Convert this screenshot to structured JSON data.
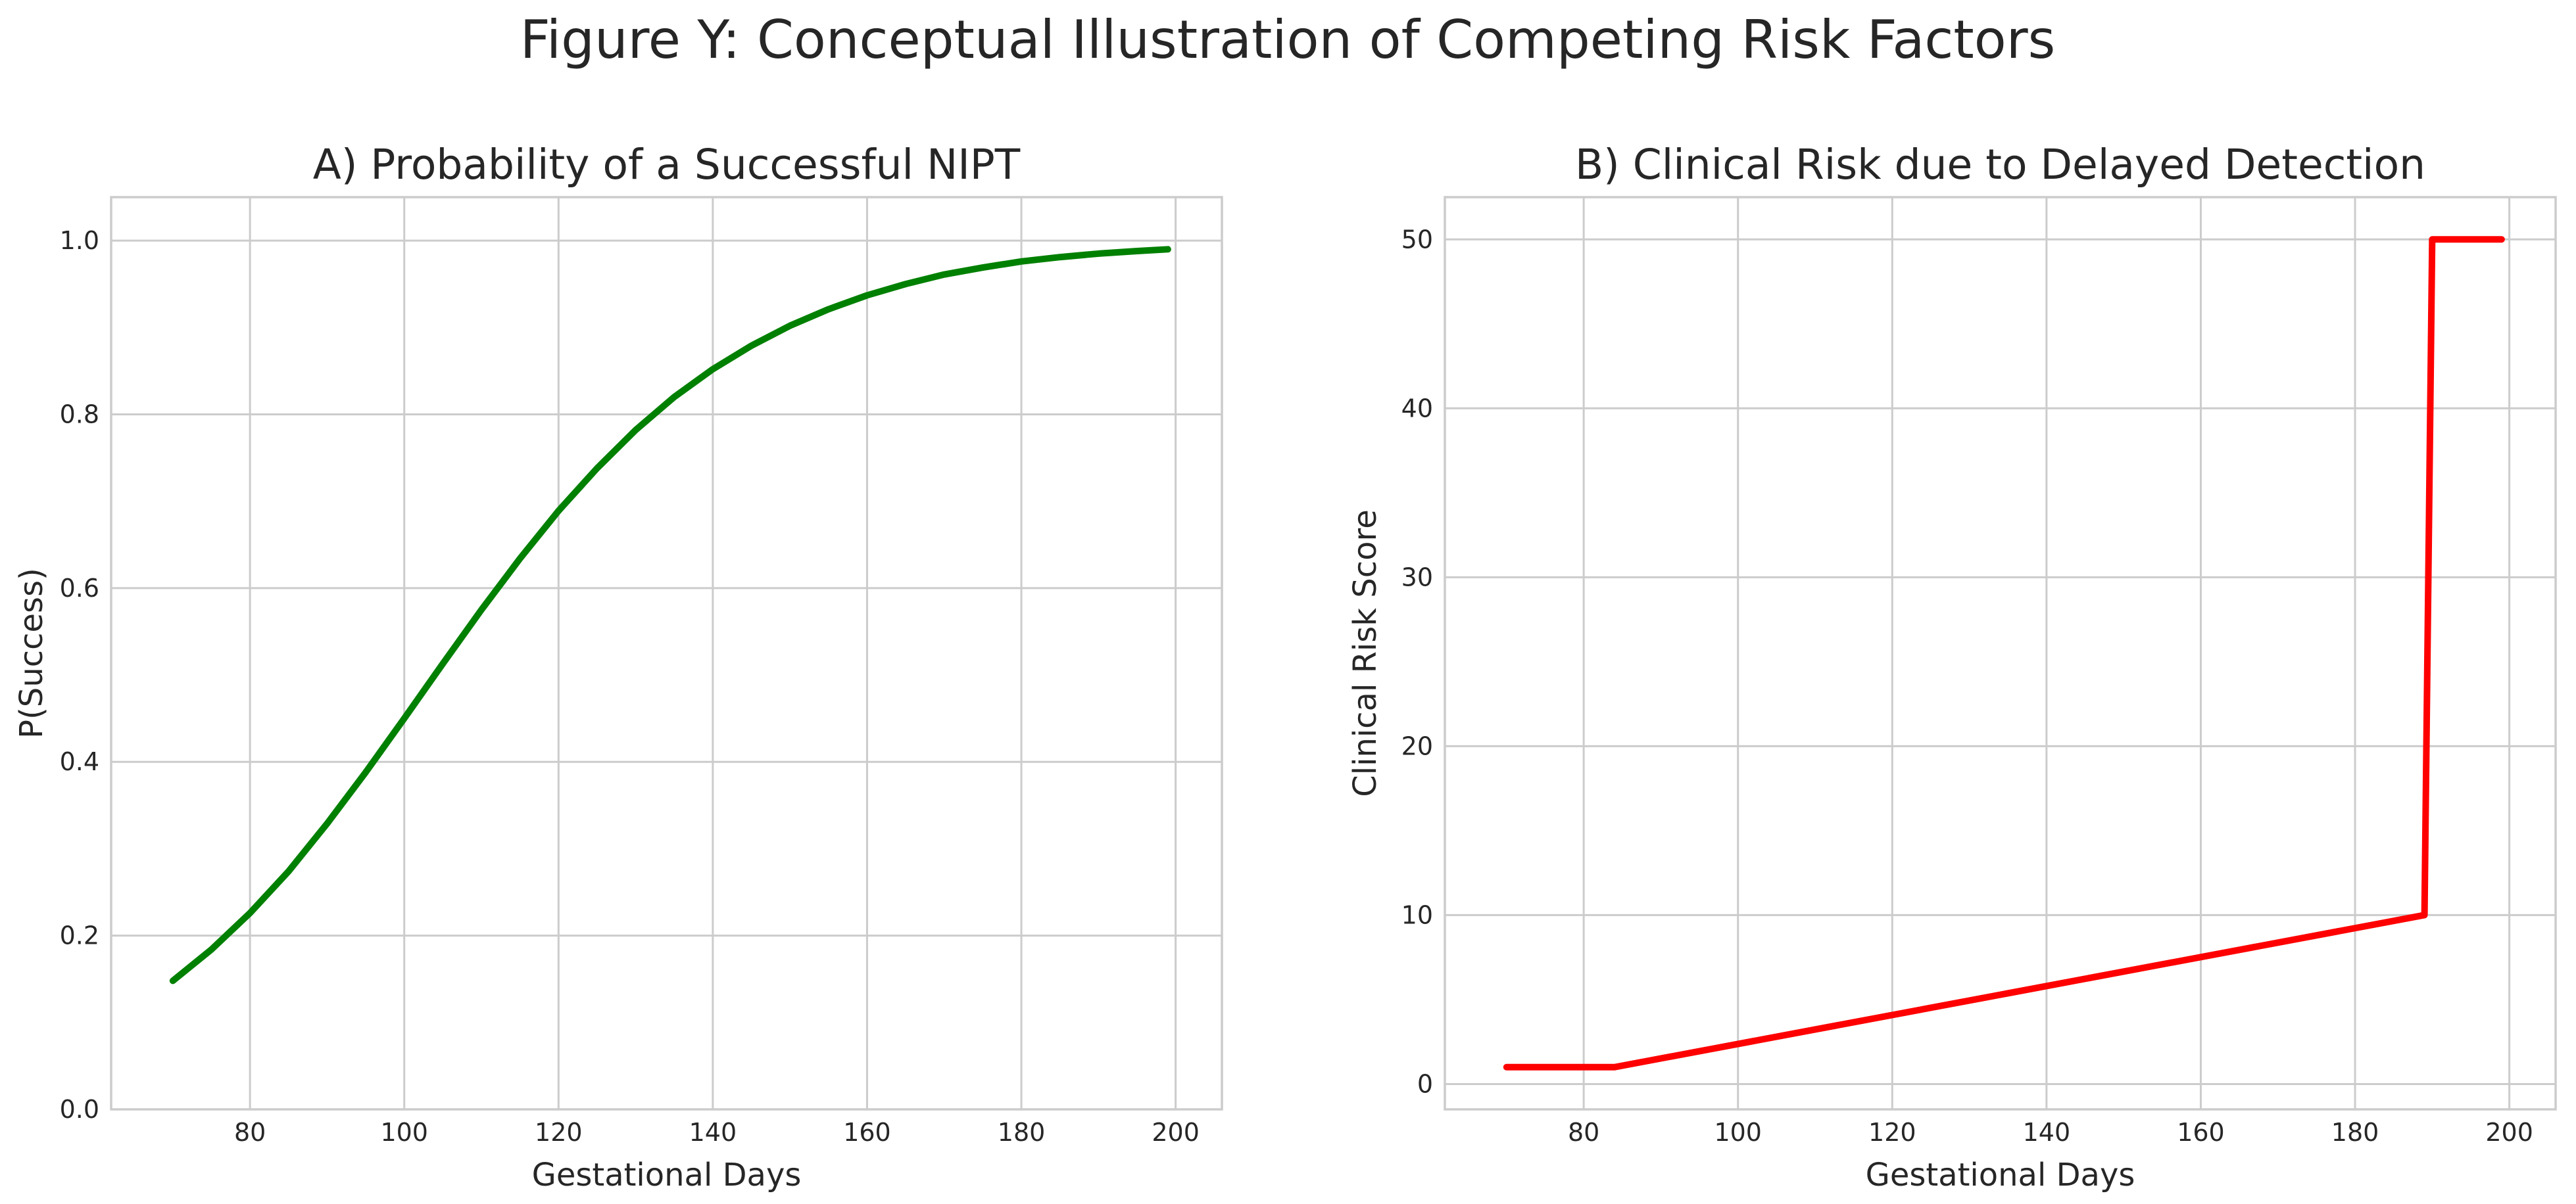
{
  "figure": {
    "title": "Figure Y: Conceptual Illustration of Competing Risk Factors"
  },
  "chart_data": [
    {
      "id": "A",
      "type": "line",
      "title": "A) Probability of a Successful NIPT",
      "xlabel": "Gestational Days",
      "ylabel": "P(Success)",
      "xlim": [
        62,
        206
      ],
      "ylim": [
        0.0,
        1.05
      ],
      "xticks": [
        80,
        100,
        120,
        140,
        160,
        180,
        200
      ],
      "yticks": [
        0.0,
        0.2,
        0.4,
        0.6,
        0.8,
        1.0
      ],
      "xtick_labels": [
        "80",
        "100",
        "120",
        "140",
        "160",
        "180",
        "200"
      ],
      "ytick_labels": [
        "0.0",
        "0.2",
        "0.4",
        "0.6",
        "0.8",
        "1.0"
      ],
      "grid": true,
      "series": [
        {
          "color": "#008000",
          "x": [
            70,
            75,
            80,
            85,
            90,
            95,
            100,
            105,
            110,
            115,
            120,
            125,
            130,
            135,
            140,
            145,
            150,
            155,
            160,
            165,
            170,
            175,
            180,
            185,
            190,
            195,
            199
          ],
          "y": [
            0.148,
            0.184,
            0.226,
            0.274,
            0.329,
            0.388,
            0.45,
            0.513,
            0.575,
            0.634,
            0.689,
            0.738,
            0.782,
            0.82,
            0.852,
            0.879,
            0.902,
            0.921,
            0.937,
            0.95,
            0.961,
            0.969,
            0.976,
            0.981,
            0.985,
            0.988,
            0.99
          ]
        }
      ]
    },
    {
      "id": "B",
      "type": "line",
      "title": "B) Clinical Risk due to Delayed Detection",
      "xlabel": "Gestational Days",
      "ylabel": "Clinical Risk Score",
      "xlim": [
        62,
        206
      ],
      "ylim": [
        -1.5,
        52.5
      ],
      "xticks": [
        80,
        100,
        120,
        140,
        160,
        180,
        200
      ],
      "yticks": [
        0,
        10,
        20,
        30,
        40,
        50
      ],
      "xtick_labels": [
        "80",
        "100",
        "120",
        "140",
        "160",
        "180",
        "200"
      ],
      "ytick_labels": [
        "0",
        "10",
        "20",
        "30",
        "40",
        "50"
      ],
      "grid": true,
      "series": [
        {
          "color": "#ff0000",
          "x": [
            70,
            84,
            189,
            190,
            199
          ],
          "y": [
            1,
            1,
            10,
            50,
            50
          ]
        }
      ]
    }
  ]
}
